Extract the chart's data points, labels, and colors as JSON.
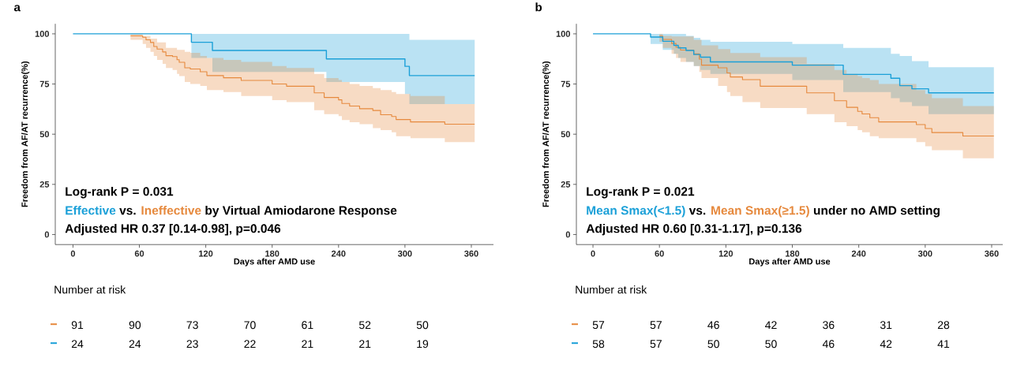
{
  "chart_data": [
    {
      "type": "step",
      "title": "a",
      "xlabel": "Days after AMD use",
      "ylabel": "Freedom from AF/AT recurrence(%)",
      "xlim": [
        -16,
        380
      ],
      "xticks": [
        0,
        60,
        120,
        180,
        240,
        300,
        360
      ],
      "ylim": [
        -5,
        105
      ],
      "yticks": [
        0,
        25,
        50,
        75,
        100
      ],
      "annotations": [
        "Log-rank P = 0.031",
        "vs.",
        "by Virtual Amiodarone Response",
        "Adjusted HR 0.37 [0.14-0.98], p=0.046"
      ],
      "series": [
        {
          "name": "Effective",
          "color": "#1ba0d8",
          "x": [
            0,
            107,
            126,
            229,
            300,
            304,
            363
          ],
          "values": [
            100,
            95.8,
            91.7,
            87.5,
            83.8,
            79.2,
            79.2
          ],
          "lower": [
            100,
            88,
            81,
            76,
            70,
            65,
            65
          ],
          "upper": [
            100,
            100,
            100,
            100,
            100,
            97,
            97
          ]
        },
        {
          "name": "Ineffective",
          "color": "#e6893d",
          "x": [
            0,
            52,
            63,
            66,
            70,
            73,
            76,
            81,
            84,
            90,
            94,
            96,
            101,
            106,
            115,
            121,
            136,
            152,
            180,
            193,
            218,
            227,
            240,
            243,
            250,
            259,
            271,
            278,
            288,
            292,
            305,
            336,
            363
          ],
          "values": [
            null,
            99,
            98.3,
            97,
            95.7,
            93.7,
            92.4,
            91,
            89.1,
            88.7,
            87.1,
            85.8,
            83.1,
            82.5,
            81.1,
            79.2,
            78.1,
            76.8,
            75,
            73.9,
            70.6,
            68.3,
            67.1,
            65.3,
            64,
            62.7,
            61.8,
            59.7,
            58.8,
            57.3,
            56.1,
            55,
            55
          ],
          "lower": [
            100,
            97,
            95,
            93,
            91,
            89,
            87,
            85,
            83,
            82,
            80,
            79,
            76,
            75,
            74,
            72,
            71,
            69,
            67,
            66,
            62,
            60,
            59,
            57,
            56,
            55,
            53,
            52,
            51,
            49,
            48,
            46,
            46
          ],
          "upper": [
            100,
            100,
            99,
            99,
            97.6,
            97.6,
            95.7,
            95.7,
            93,
            93,
            92,
            92,
            91,
            90.5,
            89,
            88,
            87,
            86,
            84,
            83,
            80,
            78,
            77,
            76,
            75,
            74,
            73,
            72,
            71,
            70,
            69,
            65,
            65
          ]
        }
      ]
    },
    {
      "type": "other",
      "title": "Number at risk",
      "annotations": [
        "91",
        "90",
        "73",
        "70",
        "61",
        "52",
        "50",
        "24",
        "24",
        "23",
        "22",
        "21",
        "21",
        "19"
      ]
    },
    {
      "type": "step",
      "title": "b",
      "xlabel": "Days after AMD use",
      "ylabel": "Freedom from AF/AT recurrence(%)",
      "xlim": [
        -15,
        370
      ],
      "xticks": [
        0,
        60,
        120,
        180,
        240,
        300,
        360
      ],
      "ylim": [
        -5,
        105
      ],
      "yticks": [
        0,
        25,
        50,
        75,
        100
      ],
      "annotations": [
        "Log-rank P = 0.021",
        "vs.",
        "under no AMD setting",
        "Adjusted HR 0.60 [0.31-1.17], p=0.136"
      ],
      "series": [
        {
          "name": "Mean Smax(<1.5)",
          "color": "#1ba0d8",
          "x": [
            0,
            52,
            63,
            73,
            77,
            84,
            91,
            97,
            106,
            180,
            226,
            269,
            277,
            288,
            303,
            362
          ],
          "values": [
            100,
            98.4,
            96.3,
            94.3,
            93,
            91.7,
            89.7,
            88.4,
            86,
            84.4,
            79.8,
            77.9,
            74.2,
            72.6,
            70.6,
            70.6
          ],
          "lower": [
            100,
            95,
            92,
            90,
            88,
            86,
            84,
            82,
            80,
            77,
            71,
            68,
            66,
            64,
            60,
            60
          ],
          "upper": [
            100,
            100,
            100,
            100,
            100,
            99,
            98,
            97,
            96,
            95,
            93,
            90,
            89,
            86.4,
            83.4,
            83.4
          ]
        },
        {
          "name": "Mean Smax(≥1.5)",
          "color": "#e6893d",
          "x": [
            0,
            60,
            63,
            71,
            75,
            79,
            91,
            96,
            98,
            113,
            121,
            124,
            135,
            151,
            193,
            218,
            229,
            239,
            243,
            250,
            258,
            292,
            300,
            306,
            334,
            362
          ],
          "values": [
            null,
            98.9,
            97.2,
            95.2,
            93.3,
            91.9,
            90,
            87.4,
            84.4,
            83.1,
            80.5,
            78.5,
            77.2,
            73.9,
            70.6,
            66.7,
            63.4,
            61.4,
            60.1,
            58.2,
            56.1,
            54.8,
            52.8,
            50.8,
            49.1,
            49.1
          ],
          "lower": [
            100,
            96,
            93,
            90,
            88,
            86,
            84,
            81,
            78,
            74,
            71,
            69,
            66,
            63,
            60,
            56,
            54,
            52,
            51,
            49,
            48,
            46,
            44,
            42,
            38,
            38
          ],
          "upper": [
            100,
            100,
            99,
            98.7,
            98.7,
            98.7,
            97,
            97,
            94.3,
            92.4,
            92.4,
            90.4,
            90.4,
            88.4,
            85,
            82,
            80,
            79,
            78,
            77,
            75,
            72,
            70,
            68,
            64,
            64
          ]
        }
      ]
    },
    {
      "type": "other",
      "title": "Number at risk",
      "annotations": [
        "57",
        "57",
        "46",
        "42",
        "36",
        "31",
        "28",
        "58",
        "57",
        "50",
        "50",
        "46",
        "42",
        "41"
      ]
    }
  ]
}
